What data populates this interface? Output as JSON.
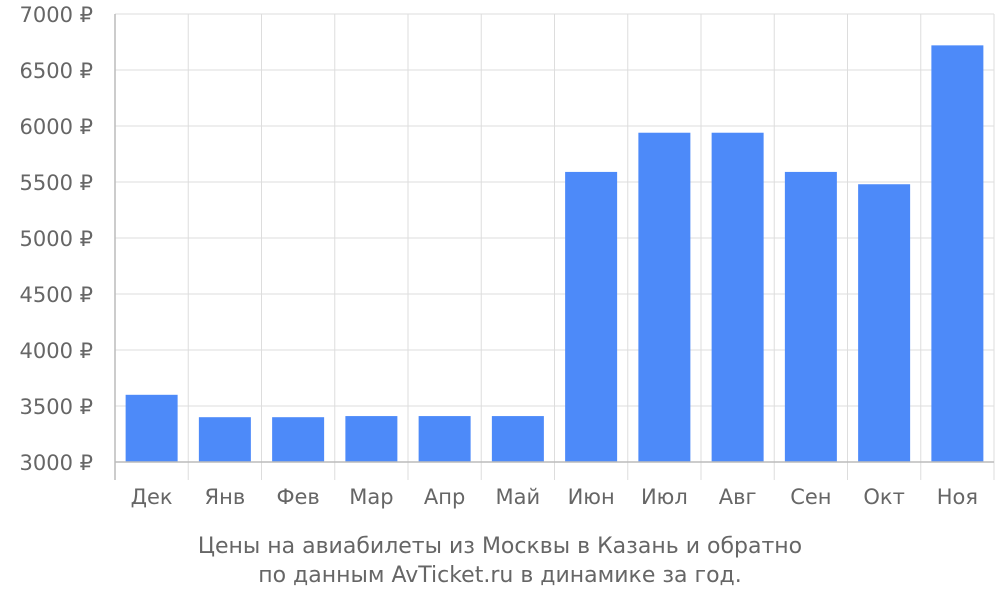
{
  "chart_data": {
    "type": "bar",
    "categories": [
      "Дек",
      "Янв",
      "Фев",
      "Мар",
      "Апр",
      "Май",
      "Июн",
      "Июл",
      "Авг",
      "Сен",
      "Окт",
      "Ноя"
    ],
    "series": [
      {
        "values": [
          3600,
          3400,
          3400,
          3410,
          3410,
          3410,
          5590,
          5940,
          5940,
          5590,
          5480,
          6720
        ]
      }
    ],
    "ylim": [
      3000,
      7000
    ],
    "ytick_step": 500,
    "ytick_labels": [
      "3000 ₽",
      "3500 ₽",
      "4000 ₽",
      "4500 ₽",
      "5000 ₽",
      "5500 ₽",
      "6000 ₽",
      "6500 ₽",
      "7000 ₽"
    ],
    "grid": true,
    "bar_color": "#4d8af9",
    "grid_color": "#dddddd",
    "axis_color": "#bbbbbb",
    "label_color": "#666666"
  },
  "caption": {
    "line1": "Цены на авиабилеты из Москвы в Казань и обратно",
    "line2": "по данным AvTicket.ru в динамике за год."
  }
}
